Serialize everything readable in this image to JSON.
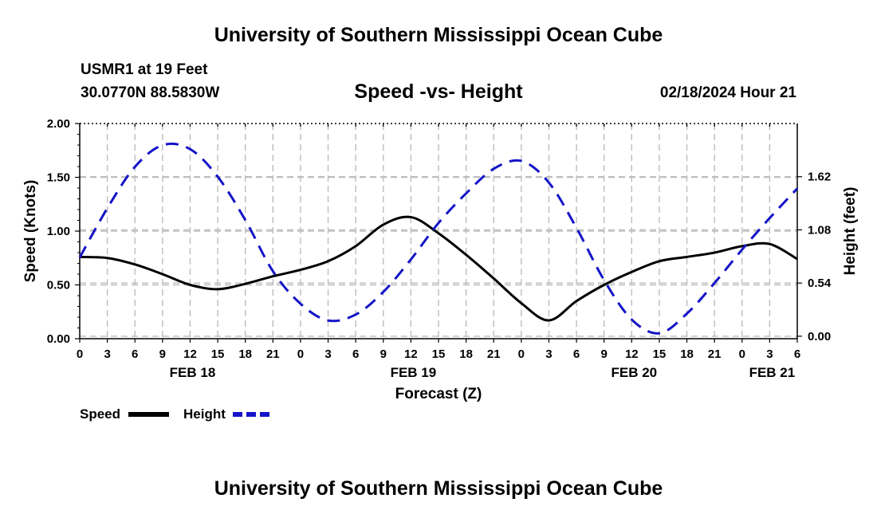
{
  "header": {
    "title": "University of Southern Mississippi Ocean Cube",
    "station": "USMR1 at 19 Feet",
    "coordinates": "30.0770N  88.5830W",
    "chart_title": "Speed -vs- Height",
    "timestamp": "02/18/2024 Hour 21"
  },
  "footer": {
    "title": "University of Southern Mississippi Ocean Cube"
  },
  "colors": {
    "speed": "#000000",
    "height": "#1414c8",
    "grid": "#bdbdbd"
  },
  "chart_data": {
    "type": "line",
    "title": "Speed -vs- Height",
    "xlabel": "Forecast (Z)",
    "ylabel": "Speed (Knots)",
    "y2label": "Height (feet)",
    "x_unit": "hours since FEB 18 00Z",
    "xlim": [
      0,
      78
    ],
    "ylim": [
      0,
      2.0
    ],
    "y2lim": [
      -0.025,
      2.16
    ],
    "x_tick_hours": [
      0,
      3,
      6,
      9,
      12,
      15,
      18,
      21,
      24,
      27,
      30,
      33,
      36,
      39,
      42,
      45,
      48,
      51,
      54,
      57,
      60,
      63,
      66,
      69,
      72,
      75,
      78
    ],
    "x_tick_labels": [
      "0",
      "3",
      "6",
      "9",
      "12",
      "15",
      "18",
      "21",
      "0",
      "3",
      "6",
      "9",
      "12",
      "15",
      "18",
      "21",
      "0",
      "3",
      "6",
      "9",
      "12",
      "15",
      "18",
      "21",
      "0",
      "3",
      "6"
    ],
    "date_labels": [
      {
        "label": "FEB 18",
        "hour": 12
      },
      {
        "label": "FEB 19",
        "hour": 36
      },
      {
        "label": "FEB 20",
        "hour": 60
      },
      {
        "label": "FEB 21",
        "hour": 75
      }
    ],
    "y_ticks": [
      0.0,
      0.5,
      1.0,
      1.5,
      2.0
    ],
    "y_tick_labels": [
      "0.00",
      "0.50",
      "1.00",
      "1.50",
      "2.00"
    ],
    "y2_ticks": [
      0.0,
      0.54,
      1.08,
      1.62
    ],
    "y2_tick_labels": [
      "0.00",
      "0.54",
      "1.08",
      "1.62"
    ],
    "grid": true,
    "legend_position": "bottom-left",
    "series": [
      {
        "name": "Speed",
        "axis": "left",
        "style": "solid",
        "x": [
          0,
          3,
          6,
          9,
          12,
          15,
          18,
          21,
          24,
          27,
          30,
          33,
          36,
          39,
          42,
          45,
          48,
          51,
          54,
          57,
          60,
          63,
          66,
          69,
          72,
          75,
          78
        ],
        "values": [
          0.76,
          0.75,
          0.69,
          0.6,
          0.5,
          0.46,
          0.51,
          0.58,
          0.64,
          0.72,
          0.86,
          1.06,
          1.13,
          0.98,
          0.78,
          0.56,
          0.33,
          0.17,
          0.35,
          0.5,
          0.62,
          0.72,
          0.76,
          0.8,
          0.86,
          0.88,
          0.74
        ]
      },
      {
        "name": "Height",
        "axis": "right",
        "style": "dashed",
        "x": [
          0,
          3,
          6,
          9,
          12,
          15,
          18,
          21,
          24,
          27,
          30,
          33,
          36,
          39,
          42,
          45,
          48,
          51,
          54,
          57,
          60,
          63,
          66,
          69,
          72,
          75,
          78
        ],
        "values": [
          0.8,
          1.3,
          1.72,
          1.94,
          1.9,
          1.62,
          1.18,
          0.66,
          0.33,
          0.16,
          0.22,
          0.45,
          0.78,
          1.15,
          1.45,
          1.7,
          1.78,
          1.56,
          1.1,
          0.57,
          0.17,
          0.03,
          0.23,
          0.54,
          0.88,
          1.2,
          1.5
        ]
      }
    ]
  }
}
